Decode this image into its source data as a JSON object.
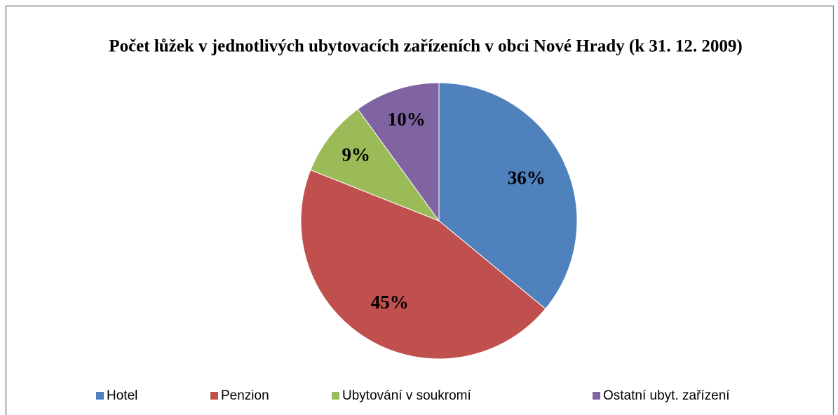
{
  "chart_data": {
    "type": "pie",
    "title": "Počet lůžek v jednotlivých ubytovacích zařízeních v obci Nové Hrady (k  31. 12. 2009)",
    "categories": [
      "Hotel",
      "Penzion",
      "Ubytování  v soukromí",
      "Ostatní ubyt.  zařízení"
    ],
    "values": [
      36,
      45,
      9,
      10
    ],
    "value_labels": [
      "36%",
      "45%",
      "9%",
      "10%"
    ],
    "colors": [
      "#4f81bd",
      "#c0504d",
      "#9bbb59",
      "#8064a2"
    ],
    "legend": "bottom"
  }
}
